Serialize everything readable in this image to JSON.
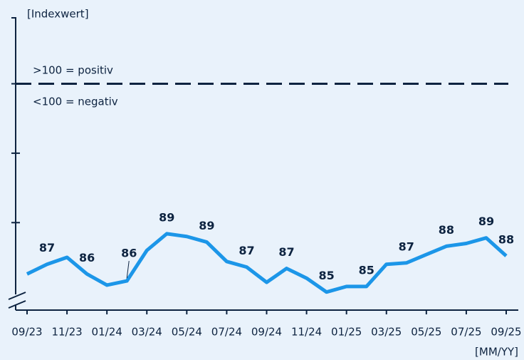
{
  "chart_data": {
    "type": "line",
    "y_axis_label": "[Indexwert]",
    "x_axis_label": "[MM/YY]",
    "annotations": [
      ">100 = positiv",
      "<100 = negativ"
    ],
    "reference_line": 100,
    "categories": [
      "09/23",
      null,
      "11/23",
      null,
      "01/24",
      null,
      "03/24",
      null,
      "05/24",
      null,
      "07/24",
      null,
      "09/24",
      null,
      "11/24",
      null,
      "01/25",
      null,
      "03/25",
      null,
      "05/25",
      null,
      "07/25",
      null,
      "09/25"
    ],
    "series": [
      {
        "name": "Index",
        "color": "#1c96e8",
        "values": [
          86.3,
          87.0,
          87.5,
          86.3,
          85.5,
          85.8,
          88.0,
          89.2,
          89.0,
          88.6,
          87.2,
          86.8,
          85.7,
          86.7,
          86.0,
          85.0,
          85.4,
          85.4,
          87.0,
          87.1,
          87.7,
          88.3,
          88.5,
          88.9,
          87.6
        ],
        "value_labels": [
          null,
          "87",
          null,
          "86",
          null,
          "86",
          null,
          "89",
          null,
          "89",
          null,
          "87",
          null,
          "87",
          null,
          "85",
          null,
          "85",
          null,
          "87",
          null,
          "88",
          null,
          "89",
          "88"
        ]
      }
    ],
    "ylim": [
      83.7,
      104.8
    ],
    "yticks": [
      90,
      95,
      100
    ]
  }
}
